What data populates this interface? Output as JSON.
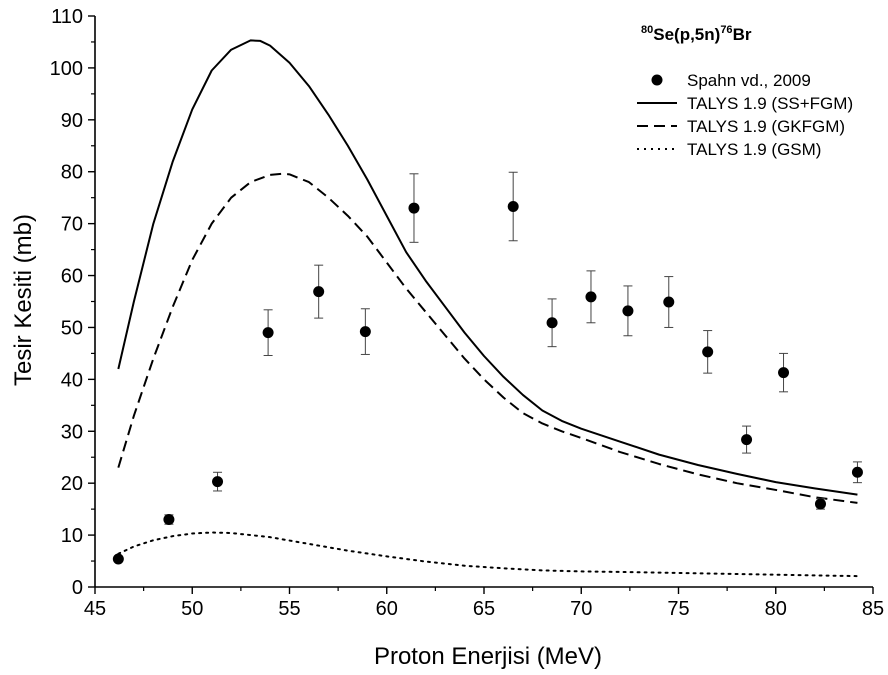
{
  "chart_data": {
    "type": "scatter",
    "title_parts": {
      "sup1": "80",
      "mid": "Se(p,5n)",
      "sup2": "76",
      "end": "Br"
    },
    "xlabel": "Proton Enerjisi (MeV)",
    "ylabel": "Tesir Kesiti (mb)",
    "xlim": [
      45,
      85
    ],
    "ylim": [
      0,
      110
    ],
    "xticks": [
      45,
      50,
      55,
      60,
      65,
      70,
      75,
      80,
      85
    ],
    "yticks": [
      0,
      10,
      20,
      30,
      40,
      50,
      60,
      70,
      80,
      90,
      100,
      110
    ],
    "grid": false,
    "legend_position": "top-right",
    "series": [
      {
        "name": "Spahn vd., 2009",
        "kind": "points",
        "color": "#000000",
        "points": [
          {
            "x": 46.2,
            "y": 5.4,
            "err": 0.5
          },
          {
            "x": 48.8,
            "y": 13.0,
            "err": 0.9
          },
          {
            "x": 51.3,
            "y": 20.3,
            "err": 1.8
          },
          {
            "x": 53.9,
            "y": 49.0,
            "err": 4.4
          },
          {
            "x": 56.5,
            "y": 56.9,
            "err": 5.1
          },
          {
            "x": 58.9,
            "y": 49.2,
            "err": 4.4
          },
          {
            "x": 61.4,
            "y": 73.0,
            "err": 6.6
          },
          {
            "x": 66.5,
            "y": 73.3,
            "err": 6.6
          },
          {
            "x": 68.5,
            "y": 50.9,
            "err": 4.6
          },
          {
            "x": 70.5,
            "y": 55.9,
            "err": 5.0
          },
          {
            "x": 72.4,
            "y": 53.2,
            "err": 4.8
          },
          {
            "x": 74.5,
            "y": 54.9,
            "err": 4.9
          },
          {
            "x": 76.5,
            "y": 45.3,
            "err": 4.1
          },
          {
            "x": 78.5,
            "y": 28.4,
            "err": 2.6
          },
          {
            "x": 80.4,
            "y": 41.3,
            "err": 3.7
          },
          {
            "x": 82.3,
            "y": 16.0,
            "err": 1.0
          },
          {
            "x": 84.2,
            "y": 22.1,
            "err": 2.0
          }
        ]
      },
      {
        "name": "TALYS 1.9 (SS+FGM)",
        "kind": "line",
        "dash": "solid",
        "color": "#000000",
        "x": [
          46.2,
          47,
          48,
          49,
          50,
          51,
          52,
          53,
          53.5,
          54,
          55,
          56,
          57,
          58,
          59,
          60,
          61,
          62,
          63,
          64,
          65,
          66,
          67,
          68,
          69,
          70,
          72,
          74,
          76,
          78,
          80,
          82,
          84.2
        ],
        "y": [
          42,
          55,
          70,
          82,
          92,
          99.5,
          103.5,
          105.3,
          105.2,
          104.3,
          101,
          96.5,
          91,
          85,
          78.5,
          71.5,
          64.5,
          59,
          54,
          49,
          44.5,
          40.5,
          37,
          34,
          32,
          30.5,
          28,
          25.5,
          23.5,
          21.8,
          20.2,
          19,
          17.8
        ]
      },
      {
        "name": "TALYS 1.9 (GKFGM)",
        "kind": "line",
        "dash": "dashed",
        "color": "#000000",
        "x": [
          46.2,
          47,
          48,
          49,
          50,
          51,
          52,
          53,
          54,
          54.6,
          55,
          56,
          57,
          58,
          59,
          60,
          61,
          62,
          63,
          64,
          65,
          66,
          67,
          68,
          69,
          70,
          72,
          74,
          76,
          78,
          80,
          82,
          84.2
        ],
        "y": [
          23,
          33,
          44,
          54,
          63,
          70,
          75,
          78,
          79.4,
          79.6,
          79.5,
          78,
          75,
          71.5,
          67.5,
          62.5,
          57.5,
          53,
          48.5,
          44,
          40,
          36.5,
          33.5,
          31.5,
          30,
          28.7,
          26,
          23.7,
          21.7,
          20,
          18.7,
          17.3,
          16.2
        ]
      },
      {
        "name": "TALYS 1.9 (GSM)",
        "kind": "line",
        "dash": "dotted",
        "color": "#000000",
        "x": [
          46.2,
          47,
          48,
          49,
          50,
          51,
          52,
          53,
          54,
          56,
          58,
          60,
          62,
          64,
          66,
          68,
          70,
          72,
          75,
          78,
          81,
          84.2
        ],
        "y": [
          6.4,
          7.8,
          9.0,
          9.8,
          10.3,
          10.5,
          10.4,
          10.0,
          9.6,
          8.3,
          7.0,
          5.9,
          4.9,
          4.1,
          3.6,
          3.2,
          3.0,
          2.9,
          2.7,
          2.5,
          2.3,
          2.1
        ]
      }
    ]
  }
}
